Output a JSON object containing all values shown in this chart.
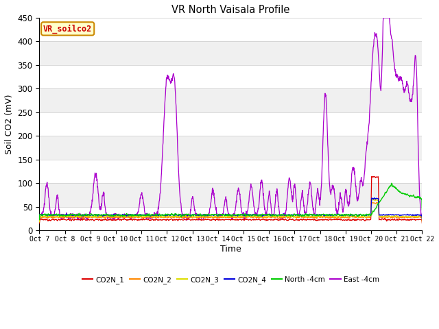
{
  "title": "VR North Vaisala Profile",
  "ylabel": "Soil CO2 (mV)",
  "xlabel": "Time",
  "annotation_label": "VR_soilco2",
  "annotation_bg": "#ffffcc",
  "annotation_border": "#cc8800",
  "ylim": [
    0,
    450
  ],
  "fig_facecolor": "#ffffff",
  "plot_facecolor": "#f0f0f0",
  "xtick_labels": [
    "Oct 7",
    "Oct 8",
    "Oct 9",
    "Oct 10",
    "Oct 11",
    "Oct 12",
    "Oct 13",
    "Oct 14",
    "Oct 15",
    "Oct 16",
    "Oct 17",
    "Oct 18",
    "Oct 19",
    "Oct 20",
    "Oct 21",
    "Oct 22"
  ],
  "series_colors": {
    "CO2N_1": "#dd0000",
    "CO2N_2": "#ff8800",
    "CO2N_3": "#dddd00",
    "CO2N_4": "#0000dd",
    "North_4cm": "#00cc00",
    "East_4cm": "#aa00cc"
  },
  "legend_labels": [
    "CO2N_1",
    "CO2N_2",
    "CO2N_3",
    "CO2N_4",
    "North -4cm",
    "East -4cm"
  ]
}
